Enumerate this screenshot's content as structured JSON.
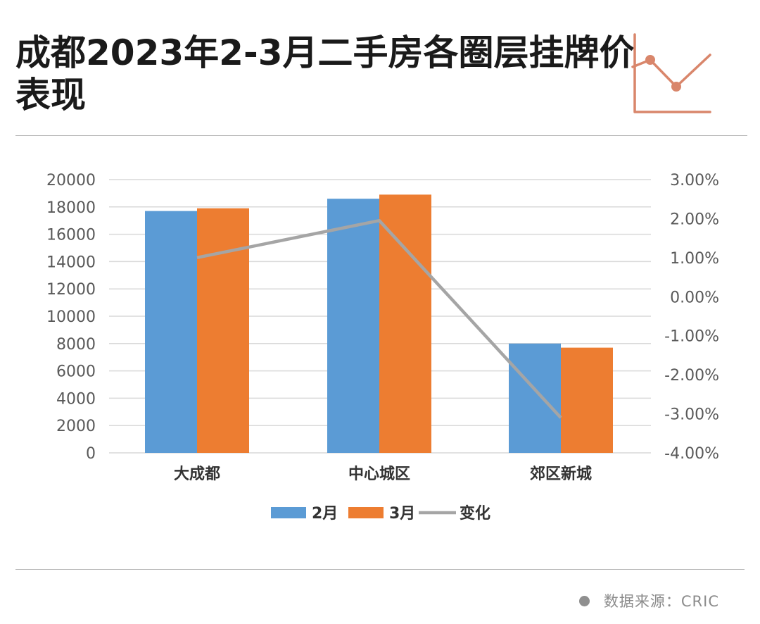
{
  "header": {
    "title": "成都2023年2-3月二手房各圈层挂牌价表现"
  },
  "icons": {
    "deco": "line-chart-icon",
    "source_bullet": "circle-bullet-icon"
  },
  "colors": {
    "feb": "#5b9bd5",
    "mar": "#ed7d31",
    "change": "#a5a5a5",
    "deco": "#d9866b",
    "grid": "#d9d9d9",
    "axis_text": "#595959",
    "category_text": "#333333"
  },
  "chart_data": {
    "type": "bar",
    "categories": [
      "大成都",
      "中心城区",
      "郊区新城"
    ],
    "series": [
      {
        "name": "2月",
        "type": "bar",
        "axis": "left",
        "values": [
          17700,
          18600,
          8000
        ]
      },
      {
        "name": "3月",
        "type": "bar",
        "axis": "left",
        "values": [
          17900,
          18900,
          7700
        ]
      },
      {
        "name": "变化",
        "type": "line",
        "axis": "right",
        "values": [
          0.01,
          0.0195,
          -0.031
        ]
      }
    ],
    "y_left": {
      "range": [
        0,
        20000
      ],
      "ticks": [
        "0",
        "2000",
        "4000",
        "6000",
        "8000",
        "10000",
        "12000",
        "14000",
        "16000",
        "18000",
        "20000"
      ]
    },
    "y_right": {
      "range": [
        -0.04,
        0.03
      ],
      "ticks": [
        "-4.00%",
        "-3.00%",
        "-2.00%",
        "-1.00%",
        "0.00%",
        "1.00%",
        "2.00%",
        "3.00%"
      ]
    },
    "grid": true,
    "legend_position": "bottom"
  },
  "footer": {
    "source": "数据来源：CRIC"
  }
}
